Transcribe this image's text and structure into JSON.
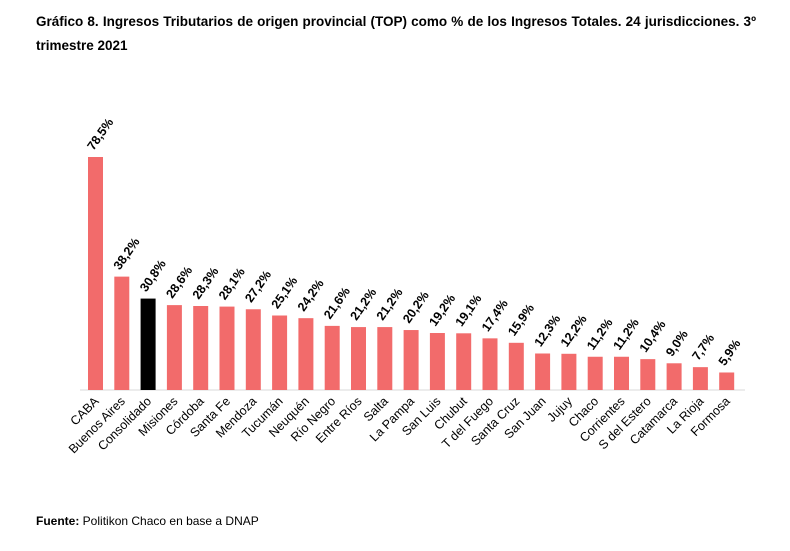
{
  "title": "Gráfico 8. Ingresos Tributarios de origen provincial (TOP) como % de los Ingresos Totales. 24 jurisdicciones. 3º trimestre 2021",
  "source": {
    "label": "Fuente:",
    "text": " Politikon Chaco en base a DNAP"
  },
  "colors": {
    "bar": "#f26b6b",
    "highlight": "#000000"
  },
  "chart_data": {
    "type": "bar",
    "title": "Gráfico 8. Ingresos Tributarios de origen provincial (TOP) como % de los Ingresos Totales. 24 jurisdicciones. 3º trimestre 2021",
    "xlabel": "",
    "ylabel": "",
    "ylim": [
      0,
      80
    ],
    "grid": false,
    "categories": [
      "CABA",
      "Buenos Aires",
      "Consolidado",
      "Misiones",
      "Córdoba",
      "Santa Fe",
      "Mendoza",
      "Tucumán",
      "Neuquén",
      "Río Negro",
      "Entre Ríos",
      "Salta",
      "La Pampa",
      "San Luis",
      "Chubut",
      "T del Fuego",
      "Santa Cruz",
      "San Juan",
      "Jujuy",
      "Chaco",
      "Corrientes",
      "S del Estero",
      "Catamarca",
      "La Rioja",
      "Formosa"
    ],
    "values": [
      78.5,
      38.2,
      30.8,
      28.6,
      28.3,
      28.1,
      27.2,
      25.1,
      24.2,
      21.6,
      21.2,
      21.2,
      20.2,
      19.2,
      19.1,
      17.4,
      15.9,
      12.3,
      12.2,
      11.2,
      11.2,
      10.4,
      9.0,
      7.7,
      5.9
    ],
    "value_labels": [
      "78,5%",
      "38,2%",
      "30,8%",
      "28,6%",
      "28,3%",
      "28,1%",
      "27,2%",
      "25,1%",
      "24,2%",
      "21,6%",
      "21,2%",
      "21,2%",
      "20,2%",
      "19,2%",
      "19,1%",
      "17,4%",
      "15,9%",
      "12,3%",
      "12,2%",
      "11,2%",
      "11,2%",
      "10,4%",
      "9,0%",
      "7,7%",
      "5,9%"
    ],
    "highlight_category": "Consolidado"
  }
}
